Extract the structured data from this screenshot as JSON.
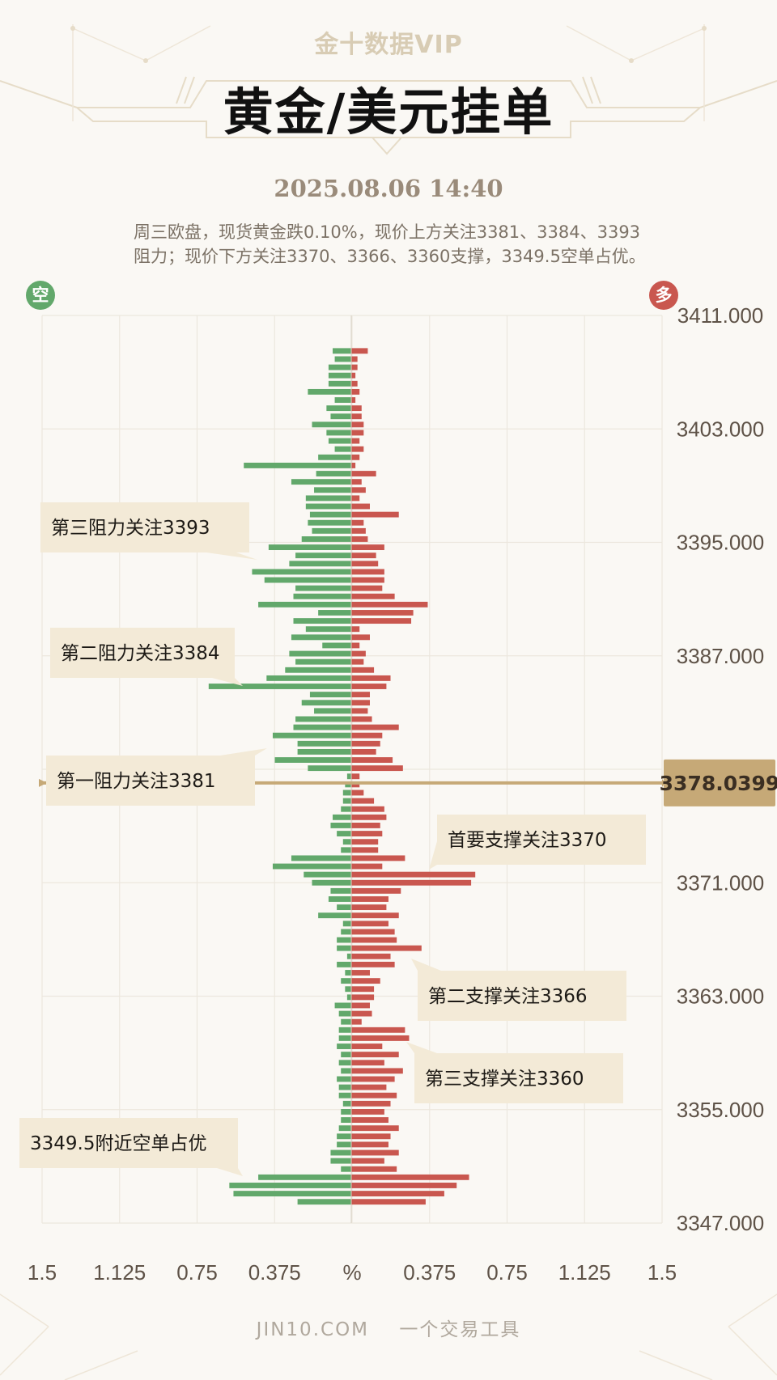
{
  "header": {
    "logo_text": "金十数据VIP",
    "title": "黄金/美元挂单",
    "datetime": "2025.08.06 14:40",
    "summary": "周三欧盘，现货黄金跌0.10%，现价上方关注3381、3384、3393阻力；现价下方关注3370、3366、3360支撑，3349.5空单占优。"
  },
  "badges": {
    "short": "空",
    "long": "多"
  },
  "footer": {
    "site": "JIN10.COM",
    "slogan": "一个交易工具"
  },
  "colors": {
    "short": "#62a86b",
    "long": "#c9574f",
    "price_line": "#c6a977",
    "callout_bg": "#f3ead7",
    "axis_text": "#5e5247"
  },
  "chart_data": {
    "type": "bar",
    "orientation": "horizontal-butterfly",
    "y_axis": {
      "min": 3347,
      "max": 3411,
      "ticks": [
        "3411.000",
        "3403.000",
        "3395.000",
        "3387.000",
        "3371.000",
        "3363.000",
        "3355.000",
        "3347.000"
      ]
    },
    "x_axis": {
      "unit": "%",
      "max": 1.5,
      "tick_labels": [
        "1.5",
        "1.125",
        "0.75",
        "0.375",
        "%",
        "0.375",
        "0.75",
        "1.125",
        "1.5"
      ]
    },
    "current_price": {
      "value": 3378.04,
      "label": "3378.0399"
    },
    "series": [
      {
        "name": "空",
        "side": "left",
        "values": [
          0.09,
          0.08,
          0.11,
          0.11,
          0.11,
          0.21,
          0.08,
          0.12,
          0.1,
          0.19,
          0.12,
          0.11,
          0.08,
          0.16,
          0.52,
          0.17,
          0.29,
          0.18,
          0.22,
          0.22,
          0.2,
          0.21,
          0.19,
          0.24,
          0.4,
          0.27,
          0.3,
          0.48,
          0.42,
          0.27,
          0.28,
          0.45,
          0.16,
          0.28,
          0.22,
          0.29,
          0.14,
          0.3,
          0.27,
          0.32,
          0.41,
          0.69,
          0.2,
          0.24,
          0.18,
          0.27,
          0.28,
          0.38,
          0.26,
          0.26,
          0.37,
          0.21,
          0.02,
          0.03,
          0.04,
          0.04,
          0.05,
          0.09,
          0.1,
          0.07,
          0.04,
          0.05,
          0.29,
          0.38,
          0.23,
          0.19,
          0.1,
          0.11,
          0.07,
          0.16,
          0.04,
          0.05,
          0.07,
          0.07,
          0.02,
          0.07,
          0.03,
          0.05,
          0.03,
          0.02,
          0.08,
          0.06,
          0.05,
          0.06,
          0.06,
          0.07,
          0.05,
          0.06,
          0.05,
          0.07,
          0.06,
          0.06,
          0.04,
          0.05,
          0.05,
          0.06,
          0.07,
          0.07,
          0.1,
          0.1,
          0.05,
          0.45,
          0.59,
          0.57,
          0.26
        ],
        "price_high": 3408.5,
        "price_low": 3348.5
      },
      {
        "name": "多",
        "side": "right",
        "values": [
          0.08,
          0.03,
          0.03,
          0.02,
          0.03,
          0.04,
          0.02,
          0.05,
          0.05,
          0.06,
          0.06,
          0.04,
          0.06,
          0.04,
          0.02,
          0.12,
          0.05,
          0.07,
          0.04,
          0.09,
          0.23,
          0.06,
          0.07,
          0.08,
          0.16,
          0.12,
          0.13,
          0.16,
          0.16,
          0.15,
          0.21,
          0.37,
          0.3,
          0.29,
          0.04,
          0.09,
          0.04,
          0.07,
          0.06,
          0.11,
          0.19,
          0.17,
          0.09,
          0.09,
          0.08,
          0.1,
          0.23,
          0.15,
          0.14,
          0.12,
          0.2,
          0.25,
          0.04,
          0.04,
          0.06,
          0.11,
          0.16,
          0.17,
          0.14,
          0.15,
          0.13,
          0.13,
          0.26,
          0.15,
          0.6,
          0.58,
          0.24,
          0.18,
          0.17,
          0.23,
          0.18,
          0.21,
          0.22,
          0.34,
          0.19,
          0.21,
          0.09,
          0.14,
          0.11,
          0.11,
          0.09,
          0.1,
          0.05,
          0.26,
          0.28,
          0.15,
          0.23,
          0.16,
          0.25,
          0.21,
          0.17,
          0.22,
          0.19,
          0.16,
          0.18,
          0.23,
          0.19,
          0.18,
          0.23,
          0.16,
          0.22,
          0.57,
          0.51,
          0.45,
          0.36
        ],
        "price_high": 3408.5,
        "price_low": 3348.5
      }
    ],
    "annotations": [
      {
        "text": "第三阻力关注3393",
        "price": 3393
      },
      {
        "text": "第二阻力关注3384",
        "price": 3384
      },
      {
        "text": "第一阻力关注3381",
        "price": 3381
      },
      {
        "text": "首要支撑关注3370",
        "price": 3370
      },
      {
        "text": "第二支撑关注3366",
        "price": 3366
      },
      {
        "text": "第三支撑关注3360",
        "price": 3360
      },
      {
        "text": "3349.5附近空单占优",
        "price": 3349.5
      }
    ]
  }
}
